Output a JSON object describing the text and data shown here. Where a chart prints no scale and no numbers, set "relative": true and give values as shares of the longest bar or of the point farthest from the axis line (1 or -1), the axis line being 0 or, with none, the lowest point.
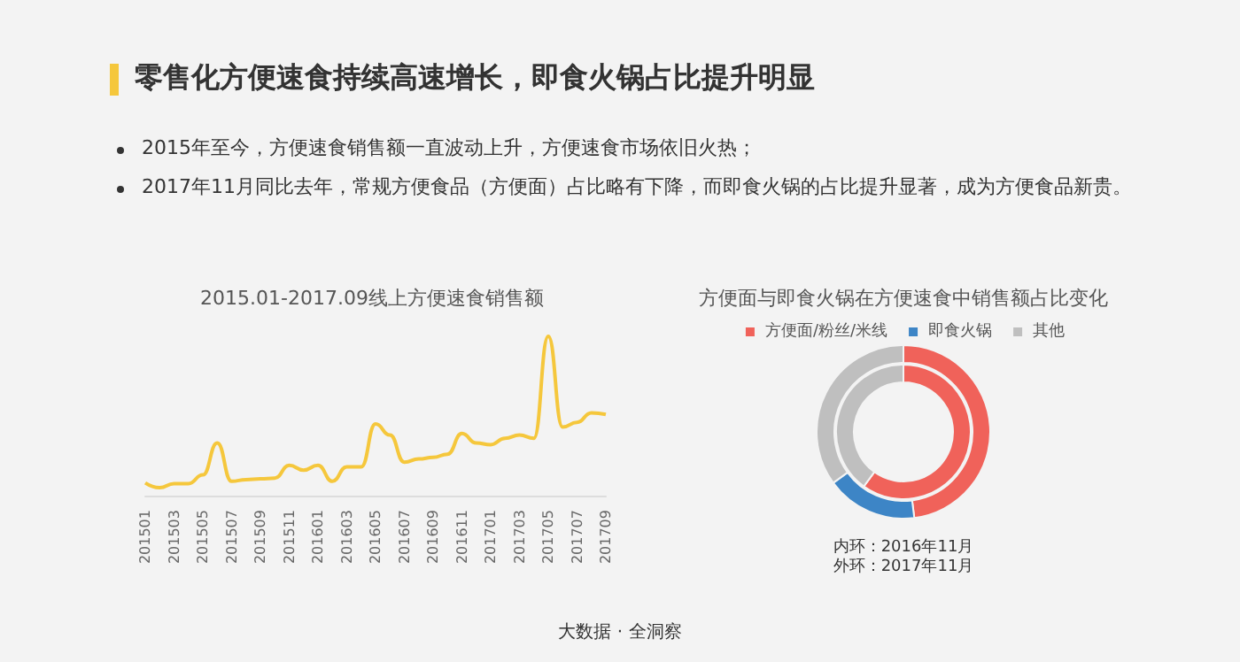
{
  "chart_data": [
    {
      "type": "other",
      "title": "零售化方便速食持续高速增长，即食火锅占比提升明显",
      "annotations": [
        "2015年至今，方便速食销售额一直波动上升，方便速食市场依旧火热；",
        "2017年11月同比去年，常规方便食品（方便面）占比略有下降，而即食火锅的占比提升显著，成为方便食品新贵。",
        "大数据 · 全洞察"
      ]
    },
    {
      "type": "line",
      "title": "2015.01-2017.09线上方便速食销售额",
      "relative": true,
      "color": "#f5c73c",
      "marker": "none",
      "line_style": "solid",
      "grid": false,
      "legend": false,
      "categories": [
        "201501",
        null,
        "201503",
        null,
        "201505",
        null,
        "201507",
        null,
        "201509",
        null,
        "201511",
        null,
        "201601",
        null,
        "201603",
        null,
        "201605",
        null,
        "201607",
        null,
        "201609",
        null,
        "201611",
        null,
        "201701",
        null,
        "201703",
        null,
        "201705",
        null,
        "201707",
        null,
        "201709"
      ],
      "values": [
        0.08,
        0.05,
        0.075,
        0.075,
        0.13,
        0.33,
        0.09,
        0.1,
        0.105,
        0.11,
        0.19,
        0.16,
        0.19,
        0.09,
        0.18,
        0.18,
        0.45,
        0.38,
        0.21,
        0.23,
        0.24,
        0.26,
        0.39,
        0.33,
        0.32,
        0.36,
        0.38,
        0.36,
        1,
        0.43,
        0.46,
        0.52,
        0.51
      ]
    },
    {
      "type": "donut",
      "title": "方便面与即食火锅在方便速食中销售额占比变化",
      "legend": "top",
      "categories": [
        "方便面/粉丝/米线",
        "即食火锅",
        "其他"
      ],
      "colors": [
        "#f0625a",
        "#3d85c6",
        "#bfbfbf"
      ],
      "series": [
        {
          "values": [
            60,
            0,
            40
          ]
        },
        {
          "values": [
            48,
            17,
            35
          ]
        }
      ],
      "annotations": [
        "内环：2016年11月",
        "外环：2017年11月"
      ]
    }
  ]
}
